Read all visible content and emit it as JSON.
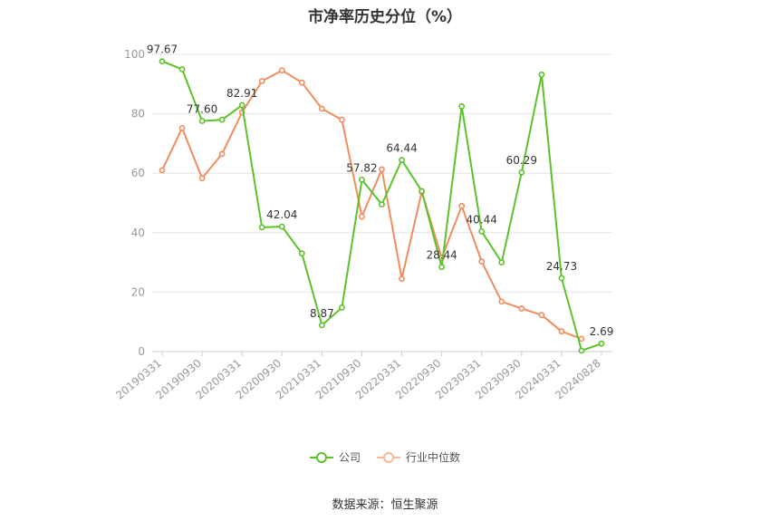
{
  "chart_data": {
    "type": "line",
    "title": "市净率历史分位（%）",
    "source": "数据来源：恒生聚源",
    "ylim": [
      0,
      100
    ],
    "yticks": [
      "0",
      "20",
      "40",
      "60",
      "80",
      "100"
    ],
    "x": [
      "20190331",
      "20190630",
      "20190930",
      "20191231",
      "20200331",
      "20200630",
      "20200930",
      "20201231",
      "20210331",
      "20210630",
      "20210930",
      "20211231",
      "20220331",
      "20220630",
      "20220930",
      "20221231",
      "20230331",
      "20230630",
      "20230930",
      "20231231",
      "20240331",
      "20240630",
      "20240828"
    ],
    "xtick_labels": [
      "20190331",
      "20190930",
      "20200331",
      "20200930",
      "20210331",
      "20210930",
      "20220331",
      "20220930",
      "20230331",
      "20230930",
      "20240331",
      "20240828"
    ],
    "grid": true,
    "legend_position": "bottom",
    "series": [
      {
        "name": "公司",
        "color": "#5cc22a",
        "values": [
          97.67,
          95.0,
          77.6,
          78.0,
          82.91,
          41.8,
          42.04,
          33.0,
          8.87,
          14.8,
          57.82,
          49.5,
          64.44,
          54.0,
          28.44,
          82.5,
          40.44,
          30.0,
          60.29,
          93.2,
          24.73,
          0.3,
          2.69
        ],
        "labels": {
          "0": "97.67",
          "2": "77.60",
          "4": "82.91",
          "6": "42.04",
          "8": "8.87",
          "10": "57.82",
          "12": "64.44",
          "14": "28.44",
          "16": "40.44",
          "18": "60.29",
          "20": "24.73",
          "22": "2.69"
        }
      },
      {
        "name": "行业中位数",
        "color": "#f28c5e",
        "values": [
          61.0,
          75.2,
          58.3,
          66.5,
          80.5,
          91.0,
          94.6,
          90.5,
          81.7,
          78.0,
          45.4,
          61.3,
          24.5,
          53.8,
          31.5,
          49.0,
          30.3,
          16.8,
          14.5,
          12.3,
          6.8,
          4.3,
          null
        ]
      }
    ]
  }
}
